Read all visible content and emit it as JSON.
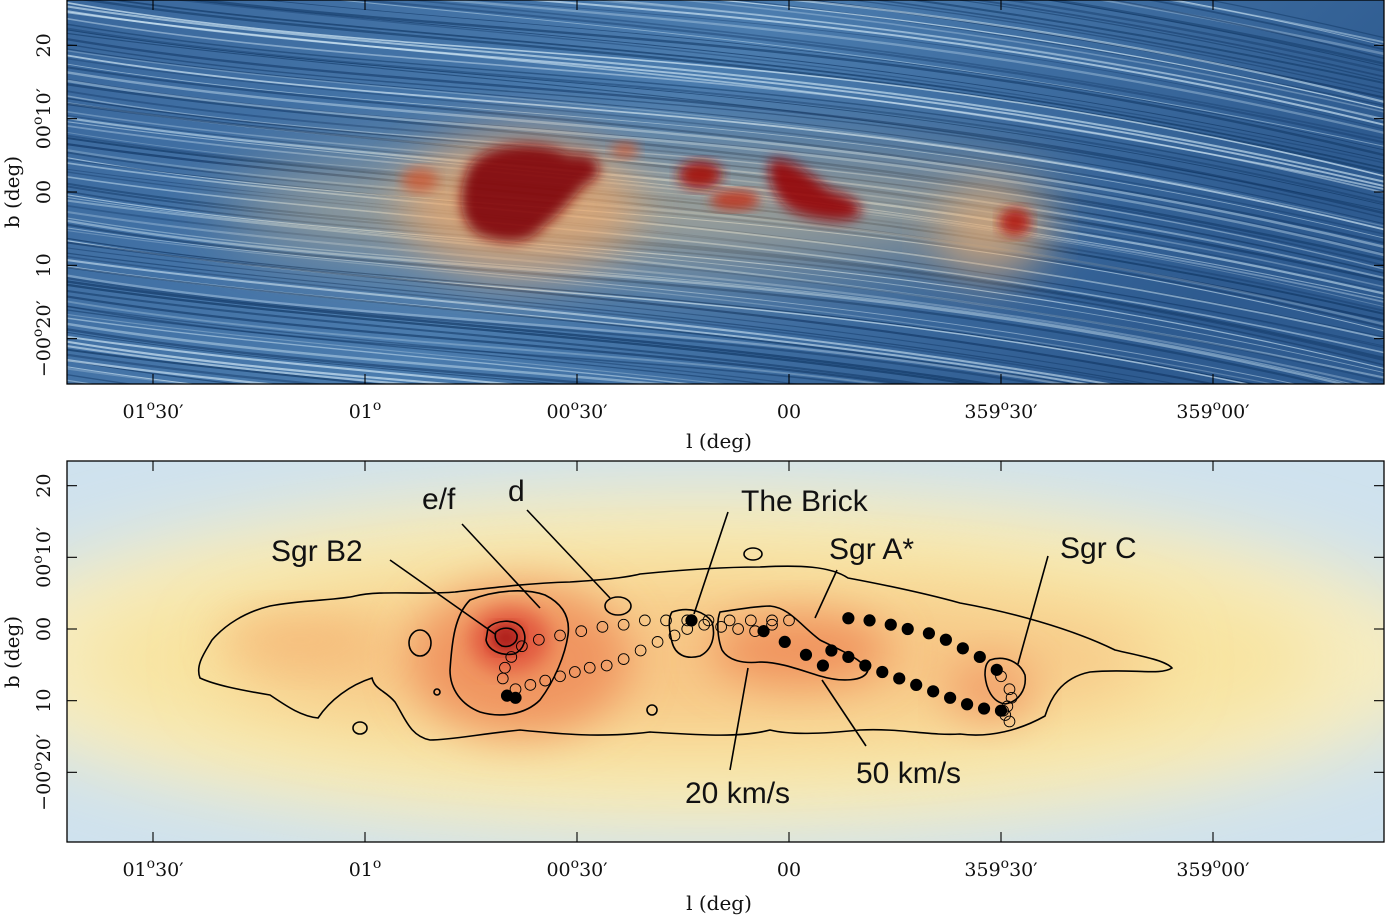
{
  "top_panel": {
    "x_label": "l (deg)",
    "y_label": "b (deg)",
    "x_ticks": [
      {
        "l": 1.5,
        "label": "01°30′"
      },
      {
        "l": 1.0,
        "label": "01°"
      },
      {
        "l": 0.5,
        "label": "00°30′"
      },
      {
        "l": 0.0,
        "label": "00"
      },
      {
        "l": -0.5,
        "label": "359°30′"
      },
      {
        "l": -1.0,
        "label": "359°00′"
      }
    ],
    "y_ticks": [
      {
        "b": 0.3333,
        "label": "20"
      },
      {
        "b": 0.1667,
        "label": "00°10′"
      },
      {
        "b": 0.0,
        "label": "00"
      },
      {
        "b": -0.1667,
        "label": "10"
      },
      {
        "b": -0.3333,
        "label": "−00°20′"
      }
    ],
    "colors": {
      "background": "#2f5f95",
      "streak_light": "#d6ecf8",
      "streak_dark": "#0f2f5a",
      "warm": "#f2c27a",
      "hot": "#8b0a0a"
    }
  },
  "bottom_panel": {
    "x_label": "l (deg)",
    "y_label": "b (deg)",
    "x_ticks": [
      {
        "l": 1.5,
        "label": "01°30′"
      },
      {
        "l": 1.0,
        "label": "01°"
      },
      {
        "l": 0.5,
        "label": "00°30′"
      },
      {
        "l": 0.0,
        "label": "00"
      },
      {
        "l": -0.5,
        "label": "359°30′"
      },
      {
        "l": -1.0,
        "label": "359°00′"
      }
    ],
    "y_ticks": [
      {
        "b": 0.3333,
        "label": "20"
      },
      {
        "b": 0.1667,
        "label": "00°10′"
      },
      {
        "b": 0.0,
        "label": "00"
      },
      {
        "b": -0.1667,
        "label": "10"
      },
      {
        "b": -0.3333,
        "label": "−00°20′"
      }
    ],
    "annotations": [
      {
        "label": "Sgr B2",
        "l": 0.67,
        "b": -0.02
      },
      {
        "label": "e/f",
        "l": 0.55,
        "b": 0.04
      },
      {
        "label": "d",
        "l": 0.41,
        "b": 0.04
      },
      {
        "label": "The Brick",
        "l": 0.23,
        "b": 0.02
      },
      {
        "label": "Sgr A*",
        "l": -0.05,
        "b": 0.01
      },
      {
        "label": "Sgr C",
        "l": -0.52,
        "b": -0.06
      },
      {
        "label": "20 km/s",
        "l": 0.1,
        "b": -0.06
      },
      {
        "label": "50 km/s",
        "l": -0.08,
        "b": -0.07
      }
    ],
    "colors": {
      "background": "#f8e6a6",
      "edge": "#c7dfef",
      "core": "#ea6a45",
      "peak": "#b0201c"
    }
  },
  "chart_data": {
    "type": "scatter",
    "series": [
      {
        "marker": "open circle",
        "points": [
          [
            0.04,
            0.02
          ],
          [
            0.09,
            0.02
          ],
          [
            0.14,
            0.02
          ],
          [
            0.19,
            0.02
          ],
          [
            0.24,
            0.02
          ],
          [
            0.29,
            0.02
          ],
          [
            0.34,
            0.02
          ],
          [
            0.39,
            0.01
          ],
          [
            0.44,
            0.005
          ],
          [
            0.49,
            -0.005
          ],
          [
            0.54,
            -0.015
          ],
          [
            0.59,
            -0.025
          ],
          [
            0.63,
            -0.04
          ],
          [
            0.655,
            -0.065
          ],
          [
            0.67,
            -0.09
          ],
          [
            0.675,
            -0.115
          ],
          [
            0.645,
            -0.14
          ],
          [
            0.61,
            -0.13
          ],
          [
            0.575,
            -0.12
          ],
          [
            0.54,
            -0.11
          ],
          [
            0.505,
            -0.1
          ],
          [
            0.47,
            -0.09
          ],
          [
            0.43,
            -0.085
          ],
          [
            0.39,
            -0.07
          ],
          [
            0.35,
            -0.05
          ],
          [
            0.31,
            -0.03
          ],
          [
            0.27,
            -0.015
          ],
          [
            0.24,
            0.0
          ],
          [
            0.2,
            0.01
          ],
          [
            0.16,
            0.005
          ],
          [
            0.12,
            0.0
          ],
          [
            0.08,
            -0.005
          ],
          [
            0.04,
            0.01
          ],
          [
            0.0,
            0.02
          ],
          [
            -0.5,
            -0.11
          ],
          [
            -0.52,
            -0.14
          ],
          [
            -0.525,
            -0.16
          ],
          [
            -0.515,
            -0.18
          ],
          [
            -0.505,
            -0.19
          ],
          [
            -0.51,
            -0.2
          ],
          [
            -0.52,
            -0.215
          ]
        ]
      },
      {
        "marker": "filled circle",
        "points": [
          [
            0.23,
            0.02
          ],
          [
            0.06,
            -0.005
          ],
          [
            0.01,
            -0.03
          ],
          [
            -0.04,
            -0.06
          ],
          [
            -0.08,
            -0.085
          ],
          [
            -0.14,
            0.025
          ],
          [
            -0.19,
            0.02
          ],
          [
            -0.24,
            0.01
          ],
          [
            -0.28,
            0.0
          ],
          [
            -0.33,
            -0.01
          ],
          [
            -0.37,
            -0.025
          ],
          [
            -0.41,
            -0.045
          ],
          [
            -0.45,
            -0.065
          ],
          [
            -0.49,
            -0.095
          ],
          [
            -0.1,
            -0.05
          ],
          [
            -0.14,
            -0.065
          ],
          [
            -0.18,
            -0.085
          ],
          [
            -0.22,
            -0.1
          ],
          [
            -0.26,
            -0.115
          ],
          [
            -0.3,
            -0.13
          ],
          [
            -0.34,
            -0.145
          ],
          [
            -0.38,
            -0.16
          ],
          [
            -0.42,
            -0.175
          ],
          [
            -0.46,
            -0.185
          ],
          [
            -0.5,
            -0.19
          ],
          [
            0.665,
            -0.155
          ],
          [
            0.645,
            -0.16
          ]
        ]
      }
    ]
  }
}
